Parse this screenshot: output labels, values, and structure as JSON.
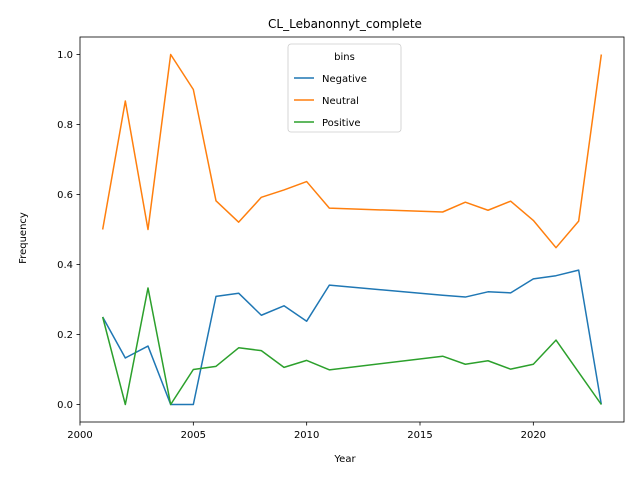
{
  "chart_data": {
    "type": "line",
    "title": "CL_Lebanonnyt_complete",
    "xlabel": "Year",
    "ylabel": "Frequency",
    "xlim": [
      2000,
      2024
    ],
    "ylim": [
      -0.05,
      1.05
    ],
    "xticks": [
      2000,
      2005,
      2010,
      2015,
      2020
    ],
    "yticks": [
      0.0,
      0.2,
      0.4,
      0.6,
      0.8,
      1.0
    ],
    "ytick_labels": [
      "0.0",
      "0.2",
      "0.4",
      "0.6",
      "0.8",
      "1.0"
    ],
    "grid": false,
    "legend": {
      "title": "bins",
      "placement": "top-center"
    },
    "x": [
      2001,
      2002,
      2003,
      2004,
      2005,
      2006,
      2007,
      2008,
      2009,
      2010,
      2011,
      2016,
      2017,
      2018,
      2019,
      2020,
      2021,
      2022,
      2023
    ],
    "series": [
      {
        "name": "Negative",
        "color": "#1f77b4",
        "values": [
          0.25,
          0.133,
          0.167,
          0.0,
          0.0,
          0.309,
          0.318,
          0.255,
          0.282,
          0.238,
          0.341,
          0.312,
          0.307,
          0.322,
          0.319,
          0.359,
          0.368,
          0.384,
          0.0
        ]
      },
      {
        "name": "Neutral",
        "color": "#ff7f0e",
        "values": [
          0.5,
          0.867,
          0.5,
          1.0,
          0.9,
          0.582,
          0.521,
          0.592,
          0.613,
          0.637,
          0.561,
          0.55,
          0.578,
          0.555,
          0.581,
          0.526,
          0.448,
          0.524,
          1.0
        ]
      },
      {
        "name": "Positive",
        "color": "#2ca02c",
        "values": [
          0.25,
          0.0,
          0.333,
          0.0,
          0.1,
          0.109,
          0.162,
          0.154,
          0.106,
          0.126,
          0.099,
          0.138,
          0.115,
          0.125,
          0.101,
          0.115,
          0.184,
          0.092,
          0.0
        ]
      }
    ]
  }
}
